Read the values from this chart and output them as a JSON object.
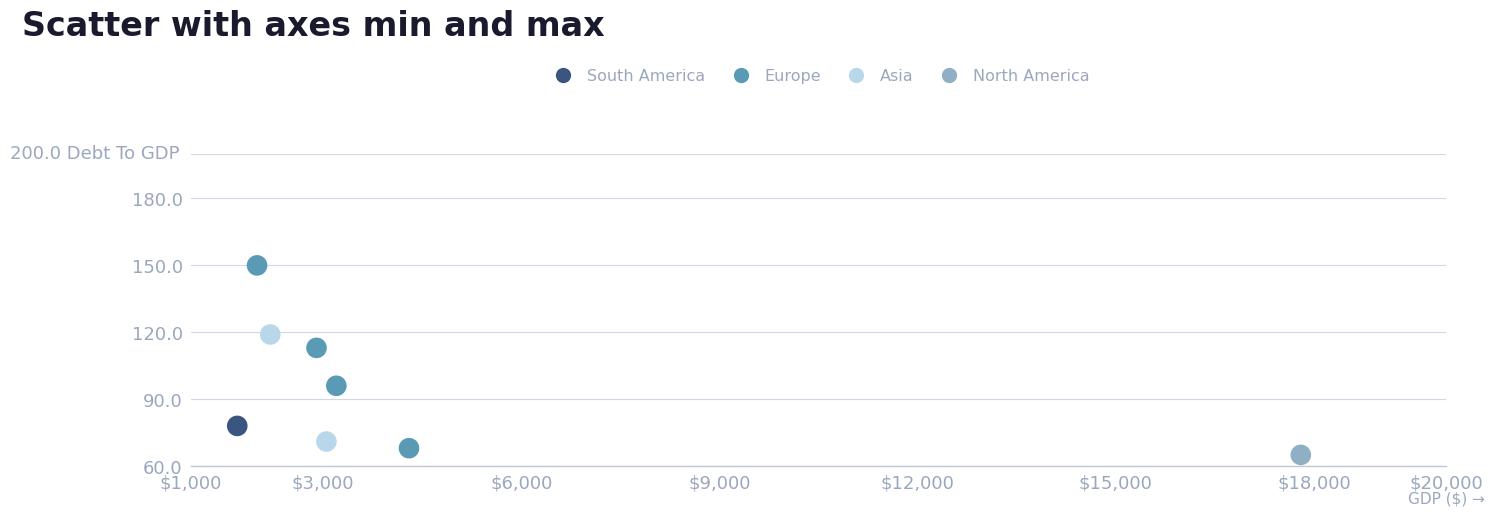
{
  "title": "Scatter with axes min and max",
  "title_fontsize": 24,
  "title_fontweight": "bold",
  "title_color": "#1a1a2e",
  "background_color": "#ffffff",
  "plot_bg_color": "#ffffff",
  "xlabel": "GDP ($) →",
  "xlim": [
    1000,
    20000
  ],
  "ylim": [
    60,
    200
  ],
  "xticks": [
    1000,
    3000,
    6000,
    9000,
    12000,
    15000,
    18000,
    20000
  ],
  "xtick_labels": [
    "$1,000",
    "$3,000",
    "$6,000",
    "$9,000",
    "$12,000",
    "$15,000",
    "$18,000",
    "$20,000"
  ],
  "yticks": [
    60,
    90,
    120,
    150,
    180,
    200
  ],
  "ytick_labels": [
    "60.0",
    "90.0",
    "120.0",
    "150.0",
    "180.0",
    "200.0 Debt To GDP"
  ],
  "grid_color": "#d0d8e8",
  "tick_color": "#9aa8be",
  "label_color": "#9aa8be",
  "series": [
    {
      "name": "South America",
      "color": "#3a5580",
      "points": [
        [
          1700,
          78
        ]
      ]
    },
    {
      "name": "Europe",
      "color": "#5a9ab5",
      "points": [
        [
          2000,
          150
        ],
        [
          2900,
          113
        ],
        [
          3200,
          96
        ],
        [
          4300,
          68
        ]
      ]
    },
    {
      "name": "Asia",
      "color": "#b8d8ea",
      "points": [
        [
          2200,
          119
        ],
        [
          3050,
          71
        ]
      ]
    },
    {
      "name": "North America",
      "color": "#90afc5",
      "points": [
        [
          17800,
          65
        ]
      ]
    }
  ],
  "marker_size": 220,
  "legend_fontsize": 11.5,
  "axis_label_fontsize": 11,
  "tick_fontsize": 13
}
